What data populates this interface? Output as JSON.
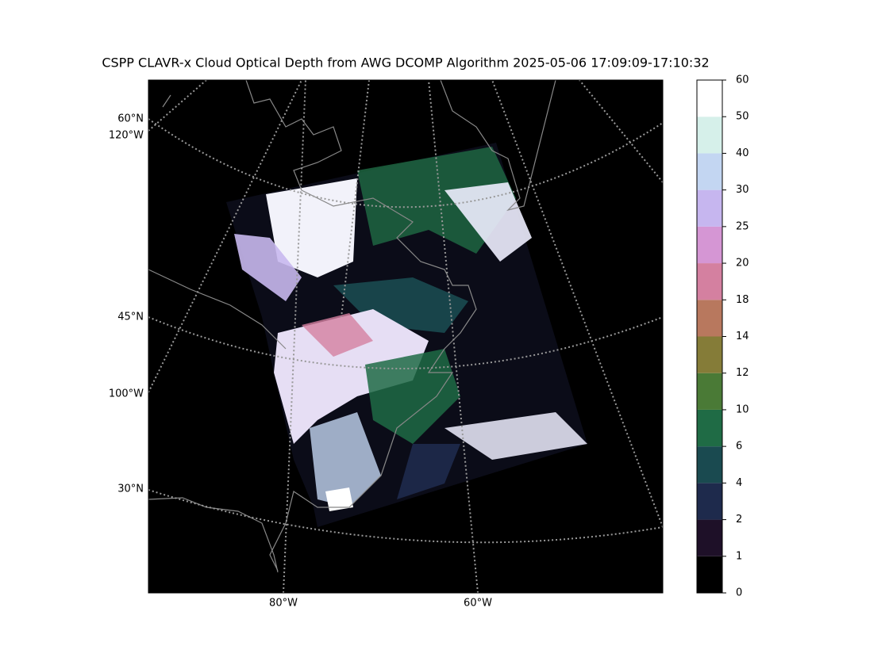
{
  "title": "CSPP CLAVR-x Cloud Optical Depth from AWG DCOMP Algorithm 2025-05-06 17:09:09-17:10:32",
  "map": {
    "lat_labels": [
      "60°N",
      "45°N",
      "30°N"
    ],
    "left_lon_labels": [
      "120°W",
      "100°W"
    ],
    "bottom_lon_labels": [
      "80°W",
      "60°W"
    ]
  },
  "colorbar": {
    "ticks": [
      0,
      1,
      2,
      4,
      6,
      10,
      12,
      14,
      18,
      20,
      25,
      30,
      40,
      50,
      60
    ],
    "colors": [
      "#000000",
      "#1e1028",
      "#1e2a4c",
      "#1a4a50",
      "#1f6b45",
      "#4a7a36",
      "#857c38",
      "#b8785e",
      "#d480a0",
      "#d596d4",
      "#c6b6ef",
      "#c3d6f2",
      "#d6f0ea",
      "#ffffff"
    ]
  }
}
